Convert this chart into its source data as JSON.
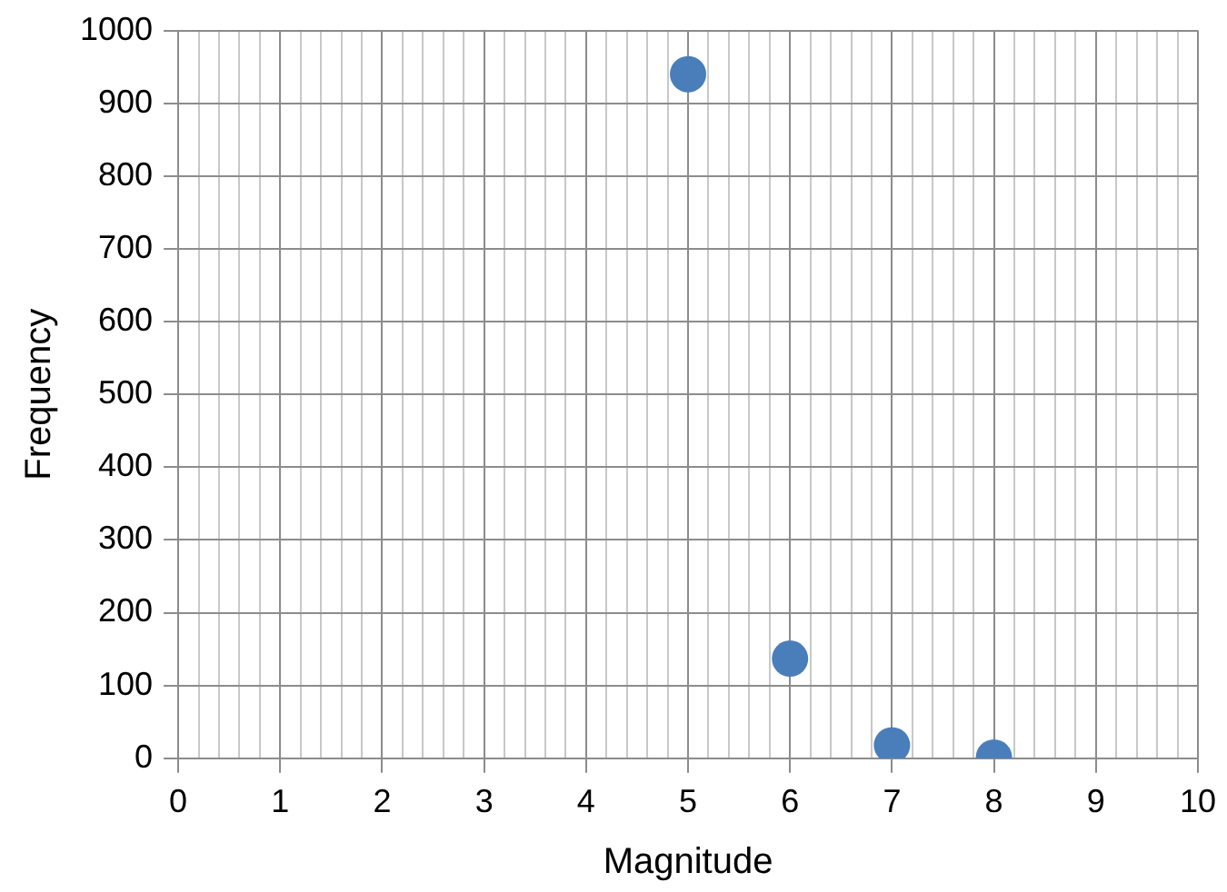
{
  "chart_data": {
    "type": "scatter",
    "xlabel": "Magnitude",
    "ylabel": "Frequency",
    "series": [
      {
        "color": "#4a7ebb",
        "x": [
          5,
          6,
          7,
          8
        ],
        "values": [
          940,
          137,
          18,
          1
        ]
      }
    ],
    "xlim": [
      0,
      10
    ],
    "xticks": [
      0,
      {
        "value": 0.2,
        "label": null
      },
      {
        "value": 0.4,
        "label": null
      },
      {
        "value": 0.6,
        "label": null
      },
      {
        "value": 0.8,
        "label": null
      },
      1,
      {
        "value": 1.2,
        "label": null
      },
      {
        "value": 1.4,
        "label": null
      },
      {
        "value": 1.6,
        "label": null
      },
      {
        "value": 1.8,
        "label": null
      },
      2,
      {
        "value": 2.2,
        "label": null
      },
      {
        "value": 2.4,
        "label": null
      },
      {
        "value": 2.6,
        "label": null
      },
      {
        "value": 2.8,
        "label": null
      },
      3,
      {
        "value": 3.2,
        "label": null
      },
      {
        "value": 3.4,
        "label": null
      },
      {
        "value": 3.6,
        "label": null
      },
      {
        "value": 3.8,
        "label": null
      },
      4,
      {
        "value": 4.2,
        "label": null
      },
      {
        "value": 4.4,
        "label": null
      },
      {
        "value": 4.6,
        "label": null
      },
      {
        "value": 4.8,
        "label": null
      },
      5,
      {
        "value": 5.2,
        "label": null
      },
      {
        "value": 5.4,
        "label": null
      },
      {
        "value": 5.6,
        "label": null
      },
      {
        "value": 5.8,
        "label": null
      },
      6,
      {
        "value": 6.2,
        "label": null
      },
      {
        "value": 6.4,
        "label": null
      },
      {
        "value": 6.6,
        "label": null
      },
      {
        "value": 6.8,
        "label": null
      },
      7,
      {
        "value": 7.2,
        "label": null
      },
      {
        "value": 7.4,
        "label": null
      },
      {
        "value": 7.6,
        "label": null
      },
      {
        "value": 7.8,
        "label": null
      },
      8,
      {
        "value": 8.2,
        "label": null
      },
      {
        "value": 8.4,
        "label": null
      },
      {
        "value": 8.6,
        "label": null
      },
      {
        "value": 8.8,
        "label": null
      },
      9,
      {
        "value": 9.2,
        "label": null
      },
      {
        "value": 9.4,
        "label": null
      },
      {
        "value": 9.6,
        "label": null
      },
      {
        "value": 9.8,
        "label": null
      },
      10
    ],
    "ylim": [
      0,
      1000
    ],
    "yticks": [
      0,
      100,
      200,
      300,
      400,
      500,
      600,
      700,
      800,
      900,
      1000
    ],
    "grid": true,
    "legend": false,
    "marker": "circle"
  }
}
